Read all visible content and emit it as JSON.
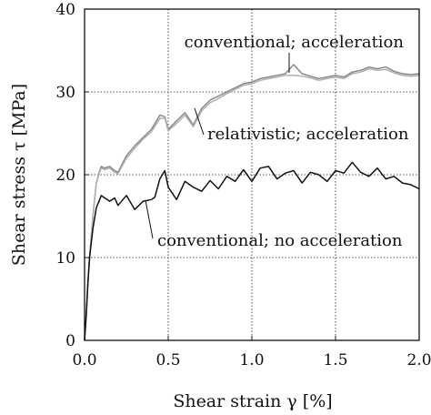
{
  "chart_data": {
    "type": "line",
    "xlabel": "Shear strain γ [%]",
    "ylabel": "Shear stress τ [MPa]",
    "xlim": [
      0.0,
      2.0
    ],
    "ylim": [
      0,
      40
    ],
    "xticks": [
      "0.0",
      "0.5",
      "1.0",
      "1.5",
      "2.0"
    ],
    "yticks": [
      "0",
      "10",
      "20",
      "30",
      "40"
    ],
    "grid": "dotted",
    "series": [
      {
        "name": "conventional; acceleration",
        "color": "#8a8a8a",
        "x": [
          0,
          0.01,
          0.02,
          0.03,
          0.05,
          0.07,
          0.09,
          0.1,
          0.12,
          0.15,
          0.18,
          0.2,
          0.25,
          0.3,
          0.35,
          0.4,
          0.45,
          0.48,
          0.5,
          0.55,
          0.6,
          0.65,
          0.7,
          0.75,
          0.8,
          0.85,
          0.9,
          0.95,
          1.0,
          1.05,
          1.1,
          1.15,
          1.2,
          1.25,
          1.3,
          1.35,
          1.4,
          1.45,
          1.5,
          1.55,
          1.6,
          1.65,
          1.7,
          1.75,
          1.8,
          1.85,
          1.9,
          1.95,
          2.0
        ],
        "y": [
          0,
          3,
          7,
          10,
          15,
          19,
          20.5,
          21,
          20.8,
          21,
          20.5,
          20.3,
          22.3,
          23.5,
          24.5,
          25.5,
          27.2,
          27,
          25.5,
          26.5,
          27.5,
          26,
          28,
          29,
          29.5,
          30,
          30.5,
          31,
          31.2,
          31.6,
          31.8,
          32,
          32.2,
          33.3,
          32.2,
          31.9,
          31.6,
          31.8,
          32,
          31.8,
          32.4,
          32.6,
          33,
          32.8,
          33,
          32.5,
          32.2,
          32.1,
          32.2
        ]
      },
      {
        "name": "relativistic; acceleration",
        "color": "#b0b0b0",
        "x": [
          0,
          0.01,
          0.02,
          0.03,
          0.05,
          0.07,
          0.09,
          0.1,
          0.12,
          0.15,
          0.18,
          0.2,
          0.25,
          0.3,
          0.35,
          0.4,
          0.45,
          0.48,
          0.5,
          0.55,
          0.6,
          0.65,
          0.7,
          0.75,
          0.8,
          0.85,
          0.9,
          0.95,
          1.0,
          1.05,
          1.1,
          1.15,
          1.2,
          1.25,
          1.3,
          1.35,
          1.4,
          1.45,
          1.5,
          1.55,
          1.6,
          1.65,
          1.7,
          1.75,
          1.8,
          1.85,
          1.9,
          1.95,
          2.0
        ],
        "y": [
          0,
          2.8,
          6.8,
          10,
          15,
          19,
          20.3,
          20.8,
          20.6,
          20.8,
          20.3,
          20.1,
          22,
          23.2,
          24.3,
          25.2,
          26.8,
          26.8,
          25.3,
          26.2,
          27.2,
          25.8,
          27.7,
          28.7,
          29.2,
          29.8,
          30.3,
          30.8,
          31,
          31.4,
          31.6,
          31.8,
          32,
          32,
          31.9,
          31.7,
          31.4,
          31.6,
          31.8,
          31.6,
          32.2,
          32.4,
          32.8,
          32.6,
          32.7,
          32.3,
          32,
          31.9,
          32
        ]
      },
      {
        "name": "conventional; no acceleration",
        "color": "#111111",
        "x": [
          0,
          0.01,
          0.02,
          0.03,
          0.05,
          0.07,
          0.09,
          0.1,
          0.12,
          0.15,
          0.18,
          0.2,
          0.25,
          0.3,
          0.35,
          0.4,
          0.42,
          0.45,
          0.48,
          0.5,
          0.55,
          0.6,
          0.65,
          0.7,
          0.75,
          0.8,
          0.85,
          0.9,
          0.95,
          1.0,
          1.05,
          1.1,
          1.15,
          1.2,
          1.25,
          1.3,
          1.35,
          1.4,
          1.45,
          1.5,
          1.55,
          1.6,
          1.65,
          1.7,
          1.75,
          1.8,
          1.85,
          1.9,
          1.95,
          2.0
        ],
        "y": [
          0,
          3,
          7,
          10,
          13.5,
          16,
          17,
          17.5,
          17.2,
          16.8,
          17.2,
          16.3,
          17.5,
          15.8,
          16.8,
          17,
          17.3,
          19.5,
          20.5,
          18.5,
          17,
          19.2,
          18.5,
          18,
          19.3,
          18.3,
          19.8,
          19.2,
          20.6,
          19.2,
          20.8,
          21,
          19.5,
          20.2,
          20.5,
          19,
          20.3,
          20,
          19.2,
          20.5,
          20.2,
          21.5,
          20.3,
          19.8,
          20.8,
          19.5,
          19.8,
          19,
          18.8,
          18.3
        ]
      }
    ]
  }
}
